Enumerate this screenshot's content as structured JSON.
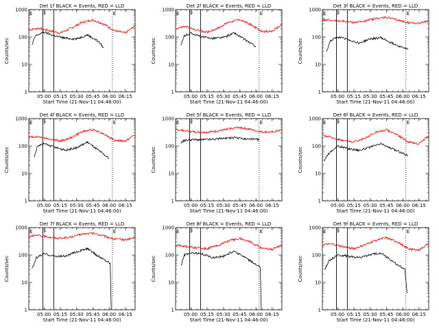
{
  "chart_data": [
    {
      "type": "line",
      "title": "Det 1f BLACK = Events, RED = LLD",
      "xlabel": "Start Time (21-Nov-11 04:46:00)",
      "ylabel": "Counts/sec",
      "yscale": "log",
      "ylim": [
        1,
        1000
      ],
      "xlim": [
        "04:46",
        "06:24"
      ],
      "x_ticks": [
        "05:00",
        "05:15",
        "05:30",
        "05:45",
        "06:00",
        "06:15"
      ],
      "y_ticks": [
        "1",
        "10",
        "100",
        "1000"
      ],
      "markers": [
        {
          "label": "E",
          "x": "04:46"
        },
        {
          "label": "F",
          "x": "04:59"
        },
        {
          "label": "E",
          "x": "06:03"
        }
      ],
      "solid_lines": [
        "04:59",
        "05:09"
      ],
      "dotted_lines": [
        "06:03"
      ],
      "series": [
        {
          "name": "LLD",
          "color": "#ff0000",
          "x": [
            "04:46",
            "04:55",
            "05:05",
            "05:15",
            "05:25",
            "05:35",
            "05:45",
            "05:55",
            "06:05",
            "06:15",
            "06:24"
          ],
          "y": [
            180,
            210,
            170,
            140,
            210,
            340,
            420,
            300,
            170,
            140,
            260
          ]
        },
        {
          "name": "Events",
          "color": "#000000",
          "x": [
            "04:49",
            "04:52",
            "05:00",
            "05:10",
            "05:20",
            "05:30",
            "05:40",
            "05:50",
            "05:55"
          ],
          "y": [
            50,
            110,
            150,
            110,
            90,
            85,
            120,
            70,
            40
          ]
        }
      ]
    },
    {
      "type": "line",
      "title": "Det 2f BLACK = Events, RED = LLD",
      "xlabel": "Start Time (21-Nov-11 04:46:00)",
      "ylabel": "Counts/sec",
      "yscale": "log",
      "ylim": [
        1,
        1000
      ],
      "xlim": [
        "04:46",
        "06:24"
      ],
      "x_ticks": [
        "05:00",
        "05:15",
        "05:30",
        "05:45",
        "06:00",
        "06:15"
      ],
      "y_ticks": [
        "1",
        "10",
        "100",
        "1000"
      ],
      "markers": [
        {
          "label": "E",
          "x": "04:46"
        },
        {
          "label": "F",
          "x": "04:59"
        },
        {
          "label": "E",
          "x": "06:03"
        }
      ],
      "solid_lines": [
        "04:59",
        "05:09"
      ],
      "dotted_lines": [
        "06:03"
      ],
      "series": [
        {
          "name": "LLD",
          "color": "#ff0000",
          "x": [
            "04:46",
            "04:55",
            "05:05",
            "05:15",
            "05:25",
            "05:35",
            "05:45",
            "05:55",
            "06:05",
            "06:15",
            "06:24"
          ],
          "y": [
            200,
            240,
            180,
            150,
            210,
            350,
            430,
            290,
            160,
            160,
            280
          ]
        },
        {
          "name": "Events",
          "color": "#000000",
          "x": [
            "04:51",
            "04:54",
            "05:00",
            "05:10",
            "05:20",
            "05:30",
            "05:40",
            "05:50",
            "06:00"
          ],
          "y": [
            50,
            110,
            140,
            100,
            90,
            95,
            140,
            80,
            45
          ]
        }
      ]
    },
    {
      "type": "line",
      "title": "Det 3f BLACK = Events, RED = LLD",
      "xlabel": "Start Time (21-Nov-11 04:46:00)",
      "ylabel": "Counts/sec",
      "yscale": "log",
      "ylim": [
        1,
        1000
      ],
      "xlim": [
        "04:46",
        "06:24"
      ],
      "x_ticks": [
        "05:00",
        "05:15",
        "05:30",
        "05:45",
        "06:00",
        "06:15"
      ],
      "y_ticks": [
        "1",
        "10",
        "100",
        "1000"
      ],
      "markers": [
        {
          "label": "E",
          "x": "04:46"
        },
        {
          "label": "F",
          "x": "04:59"
        },
        {
          "label": "E",
          "x": "06:03"
        }
      ],
      "solid_lines": [
        "04:59",
        "05:09"
      ],
      "dotted_lines": [
        "06:03"
      ],
      "series": [
        {
          "name": "LLD",
          "color": "#ff0000",
          "x": [
            "04:46",
            "04:55",
            "05:05",
            "05:15",
            "05:25",
            "05:35",
            "05:45",
            "05:55",
            "06:05",
            "06:15",
            "06:24"
          ],
          "y": [
            420,
            400,
            380,
            340,
            380,
            470,
            520,
            420,
            330,
            320,
            380
          ]
        },
        {
          "name": "Events",
          "color": "#000000",
          "x": [
            "04:50",
            "04:53",
            "05:00",
            "05:10",
            "05:20",
            "05:30",
            "05:40",
            "05:50",
            "06:05"
          ],
          "y": [
            30,
            70,
            100,
            80,
            60,
            85,
            95,
            60,
            35
          ]
        }
      ]
    },
    {
      "type": "line",
      "title": "Det 4f BLACK = Events, RED = LLD",
      "xlabel": "Start Time (21-Nov-11 04:46:00)",
      "ylabel": "Counts/sec",
      "yscale": "log",
      "ylim": [
        1,
        1000
      ],
      "xlim": [
        "04:46",
        "06:24"
      ],
      "x_ticks": [
        "05:00",
        "05:15",
        "05:30",
        "05:45",
        "06:00",
        "06:15"
      ],
      "y_ticks": [
        "1",
        "10",
        "100",
        "1000"
      ],
      "markers": [
        {
          "label": "E",
          "x": "04:46"
        },
        {
          "label": "F",
          "x": "04:59"
        },
        {
          "label": "E",
          "x": "06:03"
        }
      ],
      "solid_lines": [
        "04:59",
        "05:09"
      ],
      "dotted_lines": [
        "06:03"
      ],
      "series": [
        {
          "name": "LLD",
          "color": "#ff0000",
          "x": [
            "04:46",
            "04:55",
            "05:05",
            "05:15",
            "05:25",
            "05:35",
            "05:45",
            "05:55",
            "06:05",
            "06:15",
            "06:24"
          ],
          "y": [
            210,
            220,
            180,
            150,
            200,
            330,
            400,
            280,
            160,
            150,
            260
          ]
        },
        {
          "name": "Events",
          "color": "#000000",
          "x": [
            "04:51",
            "04:54",
            "05:00",
            "05:10",
            "05:20",
            "05:30",
            "05:40",
            "05:50",
            "06:00"
          ],
          "y": [
            40,
            100,
            120,
            90,
            70,
            85,
            140,
            70,
            35
          ]
        }
      ]
    },
    {
      "type": "line",
      "title": "Det 5f BLACK = Events, RED = LLD",
      "xlabel": "Start Time (21-Nov-11 04:46:00)",
      "ylabel": "Counts/sec",
      "yscale": "log",
      "ylim": [
        1,
        1000
      ],
      "xlim": [
        "04:46",
        "06:24"
      ],
      "x_ticks": [
        "05:00",
        "05:15",
        "05:30",
        "05:45",
        "06:00",
        "06:15"
      ],
      "y_ticks": [
        "1",
        "10",
        "100",
        "1000"
      ],
      "markers": [
        {
          "label": "E",
          "x": "04:46"
        },
        {
          "label": "F",
          "x": "04:59"
        },
        {
          "label": "E",
          "x": "06:03"
        }
      ],
      "solid_lines": [
        "04:59",
        "05:09"
      ],
      "dotted_lines": [
        "06:03"
      ],
      "series": [
        {
          "name": "LLD",
          "color": "#ff0000",
          "x": [
            "04:46",
            "04:55",
            "05:05",
            "05:15",
            "05:25",
            "05:35",
            "05:45",
            "05:55",
            "06:05",
            "06:15",
            "06:24"
          ],
          "y": [
            400,
            360,
            320,
            320,
            350,
            420,
            480,
            400,
            330,
            320,
            380
          ]
        },
        {
          "name": "Events",
          "color": "#000000",
          "x": [
            "04:51",
            "04:54",
            "05:00",
            "05:10",
            "05:20",
            "05:30",
            "05:40",
            "05:50",
            "06:03"
          ],
          "y": [
            130,
            160,
            170,
            170,
            175,
            190,
            200,
            180,
            170
          ]
        }
      ]
    },
    {
      "type": "line",
      "title": "Det 6f BLACK = Events, RED = LLD",
      "xlabel": "Start Time (21-Nov-11 04:46:00)",
      "ylabel": "Counts/sec",
      "yscale": "log",
      "ylim": [
        1,
        1000
      ],
      "xlim": [
        "04:46",
        "06:24"
      ],
      "x_ticks": [
        "05:00",
        "05:15",
        "05:30",
        "05:45",
        "06:00",
        "06:15"
      ],
      "y_ticks": [
        "1",
        "10",
        "100",
        "1000"
      ],
      "markers": [
        {
          "label": "E",
          "x": "04:46"
        },
        {
          "label": "F",
          "x": "04:59"
        },
        {
          "label": "E",
          "x": "06:03"
        }
      ],
      "solid_lines": [
        "04:59",
        "05:09"
      ],
      "dotted_lines": [
        "06:03"
      ],
      "series": [
        {
          "name": "LLD",
          "color": "#ff0000",
          "x": [
            "04:46",
            "04:55",
            "05:05",
            "05:15",
            "05:25",
            "05:35",
            "05:45",
            "05:55",
            "06:05",
            "06:15",
            "06:24"
          ],
          "y": [
            250,
            200,
            160,
            140,
            190,
            320,
            390,
            260,
            140,
            120,
            240
          ]
        },
        {
          "name": "Events",
          "color": "#000000",
          "x": [
            "04:48",
            "04:51",
            "05:00",
            "05:10",
            "05:20",
            "05:30",
            "05:40",
            "05:50",
            "06:05"
          ],
          "y": [
            30,
            50,
            100,
            80,
            70,
            90,
            120,
            80,
            45
          ]
        }
      ]
    },
    {
      "type": "line",
      "title": "Det 7f BLACK = Events, RED = LLD",
      "xlabel": "Start Time (21-Nov-11 04:46:00)",
      "ylabel": "Counts/sec",
      "yscale": "log",
      "ylim": [
        1,
        1000
      ],
      "xlim": [
        "04:46",
        "06:24"
      ],
      "x_ticks": [
        "05:00",
        "05:15",
        "05:30",
        "05:45",
        "06:00",
        "06:15"
      ],
      "y_ticks": [
        "1",
        "10",
        "100",
        "1000"
      ],
      "markers": [
        {
          "label": "E",
          "x": "04:46"
        },
        {
          "label": "F",
          "x": "04:59"
        },
        {
          "label": "E",
          "x": "06:03"
        }
      ],
      "solid_lines": [
        "04:59",
        "05:09"
      ],
      "dotted_lines": [
        "06:03"
      ],
      "series": [
        {
          "name": "LLD",
          "color": "#ff0000",
          "x": [
            "04:46",
            "04:55",
            "05:05",
            "05:15",
            "05:25",
            "05:35",
            "05:45",
            "05:55",
            "06:05",
            "06:15",
            "06:24"
          ],
          "y": [
            480,
            520,
            450,
            400,
            450,
            580,
            620,
            500,
            380,
            360,
            430
          ]
        },
        {
          "name": "Events",
          "color": "#000000",
          "x": [
            "04:49",
            "04:53",
            "05:00",
            "05:10",
            "05:20",
            "05:30",
            "05:40",
            "05:50",
            "06:01",
            "06:02"
          ],
          "y": [
            30,
            80,
            110,
            90,
            90,
            130,
            170,
            90,
            50,
            1
          ]
        }
      ]
    },
    {
      "type": "line",
      "title": "Det 8f BLACK = Events, RED = LLD",
      "xlabel": "Start Time (21-Nov-11 04:46:00)",
      "ylabel": "Counts/sec",
      "yscale": "log",
      "ylim": [
        1,
        1000
      ],
      "xlim": [
        "04:46",
        "06:24"
      ],
      "x_ticks": [
        "05:00",
        "05:15",
        "05:30",
        "05:45",
        "06:00",
        "06:15"
      ],
      "y_ticks": [
        "1",
        "10",
        "100",
        "1000"
      ],
      "markers": [
        {
          "label": "E",
          "x": "04:46"
        },
        {
          "label": "F",
          "x": "04:59"
        },
        {
          "label": "E",
          "x": "06:03"
        }
      ],
      "solid_lines": [
        "04:59",
        "05:09"
      ],
      "dotted_lines": [
        "06:03"
      ],
      "series": [
        {
          "name": "LLD",
          "color": "#ff0000",
          "x": [
            "04:46",
            "04:55",
            "05:05",
            "05:15",
            "05:25",
            "05:35",
            "05:45",
            "05:55",
            "06:05",
            "06:15",
            "06:24"
          ],
          "y": [
            230,
            210,
            180,
            170,
            220,
            330,
            400,
            300,
            180,
            160,
            230
          ]
        },
        {
          "name": "Events",
          "color": "#000000",
          "x": [
            "04:51",
            "04:54",
            "05:00",
            "05:10",
            "05:20",
            "05:30",
            "05:40",
            "05:50",
            "06:00",
            "06:04",
            "06:05"
          ],
          "y": [
            40,
            100,
            120,
            110,
            80,
            90,
            140,
            80,
            45,
            35,
            1
          ]
        }
      ]
    },
    {
      "type": "line",
      "title": "Det 9f BLACK = Events, RED = LLD",
      "xlabel": "Start Time (21-Nov-11 04:46:00)",
      "ylabel": "Counts/sec",
      "yscale": "log",
      "ylim": [
        1,
        1000
      ],
      "xlim": [
        "04:46",
        "06:24"
      ],
      "x_ticks": [
        "05:00",
        "05:15",
        "05:30",
        "05:45",
        "06:00",
        "06:15"
      ],
      "y_ticks": [
        "1",
        "10",
        "100",
        "1000"
      ],
      "markers": [
        {
          "label": "E",
          "x": "04:46"
        },
        {
          "label": "F",
          "x": "04:59"
        },
        {
          "label": "E",
          "x": "06:03"
        }
      ],
      "solid_lines": [
        "04:59",
        "05:09"
      ],
      "dotted_lines": [
        "06:03"
      ],
      "series": [
        {
          "name": "LLD",
          "color": "#ff0000",
          "x": [
            "04:46",
            "04:55",
            "05:05",
            "05:15",
            "05:25",
            "05:35",
            "05:45",
            "05:55",
            "06:05",
            "06:15",
            "06:24"
          ],
          "y": [
            240,
            250,
            200,
            170,
            230,
            350,
            420,
            300,
            170,
            150,
            260
          ]
        },
        {
          "name": "Events",
          "color": "#000000",
          "x": [
            "04:48",
            "04:52",
            "05:00",
            "05:10",
            "05:20",
            "05:30",
            "05:40",
            "05:50",
            "06:02",
            "06:04"
          ],
          "y": [
            30,
            60,
            100,
            90,
            80,
            100,
            120,
            60,
            30,
            4
          ]
        }
      ]
    }
  ]
}
